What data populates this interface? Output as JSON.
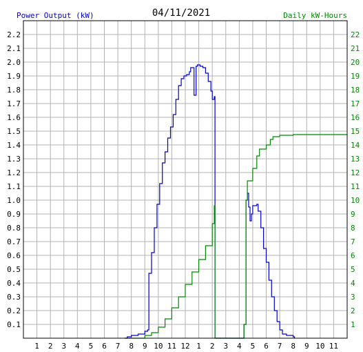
{
  "header": {
    "date": "04/11/2021",
    "left_label": "Power Output (kW)",
    "right_label": "Daily kW-Hours"
  },
  "colors": {
    "power": "#0000cc",
    "energy": "#008800",
    "grid": "#b0b0b0",
    "frame": "#000000",
    "date_text": "#000000"
  },
  "chart_data": {
    "type": "line",
    "grid": true,
    "x_range": [
      0,
      24
    ],
    "x_ticks": [
      "1",
      "2",
      "3",
      "4",
      "5",
      "6",
      "7",
      "8",
      "9",
      "10",
      "11",
      "12",
      "1",
      "2",
      "3",
      "4",
      "5",
      "6",
      "7",
      "8",
      "9",
      "10",
      "11"
    ],
    "y_left": {
      "label": "Power Output (kW)",
      "range": [
        0,
        2.3
      ],
      "ticks": [
        "0.1",
        "0.2",
        "0.3",
        "0.4",
        "0.5",
        "0.6",
        "0.7",
        "0.8",
        "0.9",
        "1.0",
        "1.1",
        "1.2",
        "1.3",
        "1.4",
        "1.5",
        "1.6",
        "1.7",
        "1.8",
        "1.9",
        "2.0",
        "2.1",
        "2.2"
      ]
    },
    "y_right": {
      "label": "Daily kW-Hours",
      "range": [
        0,
        23
      ],
      "ticks": [
        "1",
        "2",
        "3",
        "4",
        "5",
        "6",
        "7",
        "8",
        "9",
        "10",
        "11",
        "12",
        "13",
        "14",
        "15",
        "16",
        "17",
        "18",
        "19",
        "20",
        "21",
        "22"
      ]
    },
    "series": [
      {
        "name": "Power Output (kW)",
        "axis": "left",
        "points": [
          [
            7.5,
            0.0
          ],
          [
            7.7,
            0.01
          ],
          [
            8.0,
            0.02
          ],
          [
            8.5,
            0.03
          ],
          [
            9.0,
            0.05
          ],
          [
            9.2,
            0.06
          ],
          [
            9.3,
            0.47
          ],
          [
            9.5,
            0.62
          ],
          [
            9.7,
            0.8
          ],
          [
            9.9,
            0.97
          ],
          [
            10.1,
            1.12
          ],
          [
            10.3,
            1.27
          ],
          [
            10.5,
            1.35
          ],
          [
            10.7,
            1.45
          ],
          [
            10.9,
            1.53
          ],
          [
            11.1,
            1.62
          ],
          [
            11.3,
            1.73
          ],
          [
            11.5,
            1.83
          ],
          [
            11.7,
            1.88
          ],
          [
            11.9,
            1.9
          ],
          [
            12.1,
            1.91
          ],
          [
            12.3,
            1.93
          ],
          [
            12.4,
            1.96
          ],
          [
            12.6,
            1.96
          ],
          [
            12.65,
            1.76
          ],
          [
            12.75,
            1.76
          ],
          [
            12.8,
            1.97
          ],
          [
            12.9,
            1.98
          ],
          [
            13.1,
            1.97
          ],
          [
            13.3,
            1.96
          ],
          [
            13.5,
            1.92
          ],
          [
            13.7,
            1.86
          ],
          [
            13.9,
            1.79
          ],
          [
            14.0,
            1.73
          ],
          [
            14.15,
            1.75
          ],
          [
            14.2,
            0.0
          ],
          [
            16.3,
            0.0
          ],
          [
            16.35,
            0.1
          ],
          [
            16.5,
            1.0
          ],
          [
            16.6,
            1.05
          ],
          [
            16.7,
            0.95
          ],
          [
            16.8,
            0.85
          ],
          [
            16.9,
            0.9
          ],
          [
            17.0,
            0.96
          ],
          [
            17.3,
            0.97
          ],
          [
            17.4,
            0.92
          ],
          [
            17.6,
            0.8
          ],
          [
            17.8,
            0.65
          ],
          [
            18.0,
            0.55
          ],
          [
            18.2,
            0.42
          ],
          [
            18.4,
            0.3
          ],
          [
            18.6,
            0.2
          ],
          [
            18.8,
            0.12
          ],
          [
            19.0,
            0.06
          ],
          [
            19.2,
            0.03
          ],
          [
            19.5,
            0.02
          ],
          [
            20.0,
            0.01
          ],
          [
            20.1,
            0.0
          ]
        ]
      },
      {
        "name": "Daily kW-Hours",
        "axis": "right",
        "points": [
          [
            7.5,
            0.0
          ],
          [
            9.0,
            0.2
          ],
          [
            9.5,
            0.4
          ],
          [
            10.0,
            0.8
          ],
          [
            10.5,
            1.4
          ],
          [
            11.0,
            2.2
          ],
          [
            11.5,
            3.0
          ],
          [
            12.0,
            3.9
          ],
          [
            12.5,
            4.8
          ],
          [
            13.0,
            5.7
          ],
          [
            13.5,
            6.7
          ],
          [
            14.0,
            8.3
          ],
          [
            14.15,
            9.6
          ],
          [
            14.2,
            0.0
          ],
          [
            16.3,
            0.0
          ],
          [
            16.35,
            1.0
          ],
          [
            16.5,
            10.0
          ],
          [
            16.6,
            11.4
          ],
          [
            17.0,
            12.3
          ],
          [
            17.3,
            13.2
          ],
          [
            17.5,
            13.7
          ],
          [
            18.0,
            14.0
          ],
          [
            18.3,
            14.4
          ],
          [
            18.5,
            14.6
          ],
          [
            19.0,
            14.7
          ],
          [
            20.0,
            14.75
          ],
          [
            24.0,
            14.75
          ]
        ]
      }
    ]
  }
}
